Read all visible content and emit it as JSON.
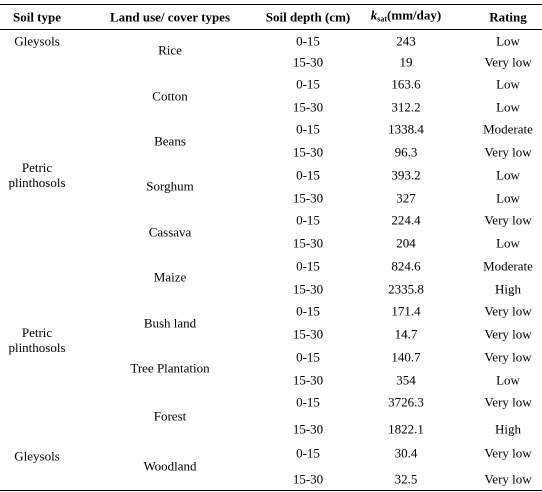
{
  "header": {
    "soil_type": "Soil type",
    "land_use": "Land use/ cover types",
    "soil_depth": "Soil depth (cm)",
    "ksat_k": "k",
    "ksat_sub": "sat",
    "ksat_unit": "(mm/day)",
    "rating": "Rating"
  },
  "soil_types": [
    {
      "lines": [
        "Gleysols"
      ]
    },
    {
      "lines": [
        "Petric",
        "plinthosols"
      ]
    },
    {
      "lines": [
        "Petric",
        "plinthosols"
      ]
    },
    {
      "lines": [
        "Gleysols"
      ]
    }
  ],
  "land_uses": [
    "Rice",
    "Cotton",
    "Beans",
    "Sorghum",
    "Cassava",
    "Maize",
    "Bush land",
    "Tree Plantation",
    "Forest",
    "Woodland"
  ],
  "rows": [
    {
      "depth": "0-15",
      "ksat": "243",
      "rating": "Low"
    },
    {
      "depth": "15-30",
      "ksat": "19",
      "rating": "Very low"
    },
    {
      "depth": "0-15",
      "ksat": "163.6",
      "rating": "Low"
    },
    {
      "depth": "15-30",
      "ksat": "312.2",
      "rating": "Low"
    },
    {
      "depth": "0-15",
      "ksat": "1338.4",
      "rating": "Moderate"
    },
    {
      "depth": "15-30",
      "ksat": "96.3",
      "rating": "Very low"
    },
    {
      "depth": "0-15",
      "ksat": "393.2",
      "rating": "Low"
    },
    {
      "depth": "15-30",
      "ksat": "327",
      "rating": "Low"
    },
    {
      "depth": "0-15",
      "ksat": "224.4",
      "rating": "Very low"
    },
    {
      "depth": "15-30",
      "ksat": "204",
      "rating": "Low"
    },
    {
      "depth": "0-15",
      "ksat": "824.6",
      "rating": "Moderate"
    },
    {
      "depth": "15-30",
      "ksat": "2335.8",
      "rating": "High"
    },
    {
      "depth": "0-15",
      "ksat": "171.4",
      "rating": "Very low"
    },
    {
      "depth": "15-30",
      "ksat": "14.7",
      "rating": "Very low"
    },
    {
      "depth": "0-15",
      "ksat": "140.7",
      "rating": "Very low"
    },
    {
      "depth": "15-30",
      "ksat": "354",
      "rating": "Low"
    },
    {
      "depth": "0-15",
      "ksat": "3726.3",
      "rating": "Very low"
    },
    {
      "depth": "15-30",
      "ksat": "1822.1",
      "rating": "High"
    },
    {
      "depth": "0-15",
      "ksat": "30.4",
      "rating": "Very low"
    },
    {
      "depth": "15-30",
      "ksat": "32.5",
      "rating": "Very low"
    }
  ]
}
